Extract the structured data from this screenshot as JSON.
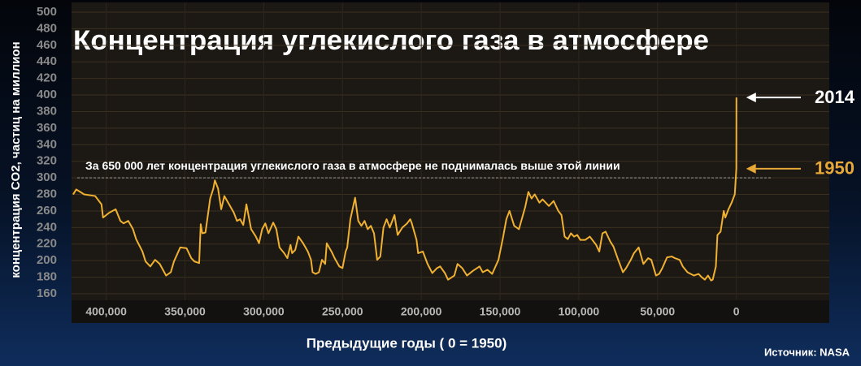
{
  "chart_data": {
    "type": "line",
    "title": "Концентрация углекислого газа в атмосфере",
    "y_label": "концентрация CO2, частиц на миллион",
    "x_label": "Предыдущие годы ( 0 = 1950)",
    "source": "Источник: NASA",
    "reference_line": {
      "value": 300,
      "label": "За 650 000 лет концентрация углекислого газа в атмосфере не поднималась выше этой линии"
    },
    "annotations": [
      {
        "text": "2014",
        "x": -64,
        "y": 397,
        "color": "#ffffff"
      },
      {
        "text": "1950",
        "x": 0,
        "y": 311,
        "color": "#e8a838"
      }
    ],
    "xlim": [
      422000,
      -59000
    ],
    "ylim": [
      160,
      500
    ],
    "xticks": [
      {
        "value": 400000,
        "label": "400,000"
      },
      {
        "value": 350000,
        "label": "350,000"
      },
      {
        "value": 300000,
        "label": "300,000"
      },
      {
        "value": 250000,
        "label": "250,000"
      },
      {
        "value": 200000,
        "label": "200,000"
      },
      {
        "value": 150000,
        "label": "150,000"
      },
      {
        "value": 100000,
        "label": "100,000"
      },
      {
        "value": 50000,
        "label": "50,000"
      },
      0
    ],
    "yticks": [
      160,
      180,
      200,
      220,
      240,
      260,
      280,
      300,
      320,
      340,
      360,
      380,
      400,
      420,
      440,
      460,
      480,
      500
    ],
    "grid": true,
    "series": [
      {
        "name": "CO2",
        "color": "#f0b030",
        "x": [
          421000,
          419000,
          414000,
          407000,
          403000,
          402000,
          398000,
          394000,
          391000,
          389000,
          386000,
          383000,
          381000,
          377000,
          375000,
          372000,
          369000,
          366000,
          362000,
          359000,
          357000,
          353000,
          349000,
          346000,
          344000,
          341000,
          340000,
          339000,
          337000,
          334000,
          332000,
          331000,
          329000,
          327000,
          326000,
          325000,
          322000,
          319000,
          317000,
          315000,
          313000,
          311000,
          310000,
          308000,
          305000,
          303000,
          301000,
          299000,
          297000,
          294000,
          292000,
          290000,
          287000,
          285000,
          283000,
          282000,
          280000,
          278000,
          275000,
          272000,
          270000,
          269000,
          267000,
          265000,
          263000,
          261000,
          260000,
          257000,
          255000,
          252000,
          250000,
          248000,
          247000,
          245000,
          242000,
          240000,
          238000,
          236000,
          234000,
          232000,
          230000,
          228000,
          226000,
          224000,
          222000,
          220000,
          217000,
          215000,
          212000,
          209000,
          207000,
          206000,
          203000,
          202000,
          199000,
          196000,
          193000,
          190000,
          188000,
          185000,
          183000,
          179000,
          177000,
          174000,
          171000,
          167000,
          163000,
          161000,
          158000,
          155000,
          151000,
          148000,
          146000,
          144000,
          141000,
          138000,
          134000,
          132000,
          130000,
          128000,
          125000,
          123000,
          119000,
          116000,
          113000,
          111000,
          109000,
          107000,
          105000,
          103000,
          101000,
          99000,
          96000,
          93000,
          89000,
          87000,
          85000,
          83000,
          80000,
          78000,
          75000,
          72000,
          70000,
          67000,
          65000,
          62000,
          59000,
          56000,
          54000,
          51000,
          49000,
          47000,
          44000,
          41000,
          39000,
          36000,
          34000,
          31000,
          27000,
          24000,
          22000,
          20000,
          18000,
          16000,
          15000,
          13000,
          12000,
          10000,
          8000,
          7000,
          5000,
          3000,
          1000,
          0,
          -64
        ],
        "values": [
          280,
          286,
          280,
          278,
          268,
          252,
          258,
          262,
          248,
          245,
          248,
          238,
          226,
          211,
          199,
          193,
          201,
          196,
          182,
          186,
          199,
          216,
          215,
          203,
          199,
          197,
          244,
          233,
          234,
          275,
          287,
          297,
          287,
          262,
          270,
          278,
          268,
          258,
          248,
          250,
          243,
          268,
          258,
          238,
          229,
          221,
          238,
          245,
          233,
          246,
          238,
          216,
          209,
          203,
          219,
          209,
          213,
          229,
          221,
          211,
          201,
          186,
          184,
          186,
          201,
          196,
          221,
          211,
          203,
          193,
          191,
          211,
          216,
          250,
          276,
          248,
          242,
          248,
          238,
          242,
          233,
          201,
          205,
          240,
          250,
          240,
          255,
          231,
          240,
          245,
          250,
          245,
          225,
          209,
          211,
          196,
          185,
          191,
          193,
          185,
          177,
          182,
          196,
          191,
          182,
          188,
          193,
          186,
          189,
          184,
          201,
          229,
          250,
          260,
          242,
          238,
          265,
          283,
          275,
          280,
          270,
          274,
          266,
          272,
          260,
          255,
          229,
          226,
          233,
          229,
          231,
          225,
          225,
          229,
          219,
          211,
          233,
          235,
          223,
          217,
          201,
          186,
          191,
          201,
          209,
          216,
          196,
          203,
          201,
          182,
          184,
          191,
          204,
          205,
          203,
          201,
          193,
          186,
          182,
          184,
          180,
          177,
          182,
          176,
          177,
          193,
          231,
          235,
          260,
          252,
          262,
          270,
          280,
          311,
          397
        ]
      }
    ]
  }
}
